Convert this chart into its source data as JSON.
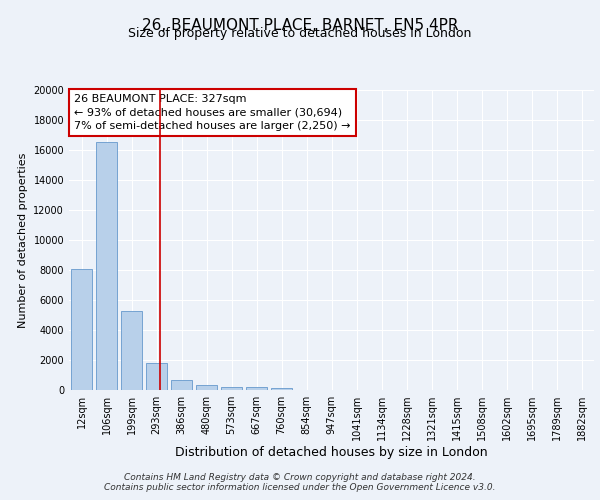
{
  "title": "26, BEAUMONT PLACE, BARNET, EN5 4PR",
  "subtitle": "Size of property relative to detached houses in London",
  "xlabel": "Distribution of detached houses by size in London",
  "ylabel": "Number of detached properties",
  "categories": [
    "12sqm",
    "106sqm",
    "199sqm",
    "293sqm",
    "386sqm",
    "480sqm",
    "573sqm",
    "667sqm",
    "760sqm",
    "854sqm",
    "947sqm",
    "1041sqm",
    "1134sqm",
    "1228sqm",
    "1321sqm",
    "1415sqm",
    "1508sqm",
    "1602sqm",
    "1695sqm",
    "1789sqm",
    "1882sqm"
  ],
  "values": [
    8050,
    16500,
    5300,
    1820,
    700,
    320,
    210,
    210,
    150,
    0,
    0,
    0,
    0,
    0,
    0,
    0,
    0,
    0,
    0,
    0,
    0
  ],
  "bar_color": "#b8d0ea",
  "bar_edge_color": "#6699cc",
  "vline_x": 3.12,
  "vline_color": "#cc0000",
  "annotation_line1": "26 BEAUMONT PLACE: 327sqm",
  "annotation_line2": "← 93% of detached houses are smaller (30,694)",
  "annotation_line3": "7% of semi-detached houses are larger (2,250) →",
  "annotation_box_color": "#cc0000",
  "background_color": "#edf2f9",
  "ylim": [
    0,
    20000
  ],
  "yticks": [
    0,
    2000,
    4000,
    6000,
    8000,
    10000,
    12000,
    14000,
    16000,
    18000,
    20000
  ],
  "footer_line1": "Contains HM Land Registry data © Crown copyright and database right 2024.",
  "footer_line2": "Contains public sector information licensed under the Open Government Licence v3.0.",
  "title_fontsize": 11,
  "subtitle_fontsize": 9,
  "xlabel_fontsize": 9,
  "ylabel_fontsize": 8,
  "tick_fontsize": 7,
  "annotation_fontsize": 8,
  "footer_fontsize": 6.5
}
